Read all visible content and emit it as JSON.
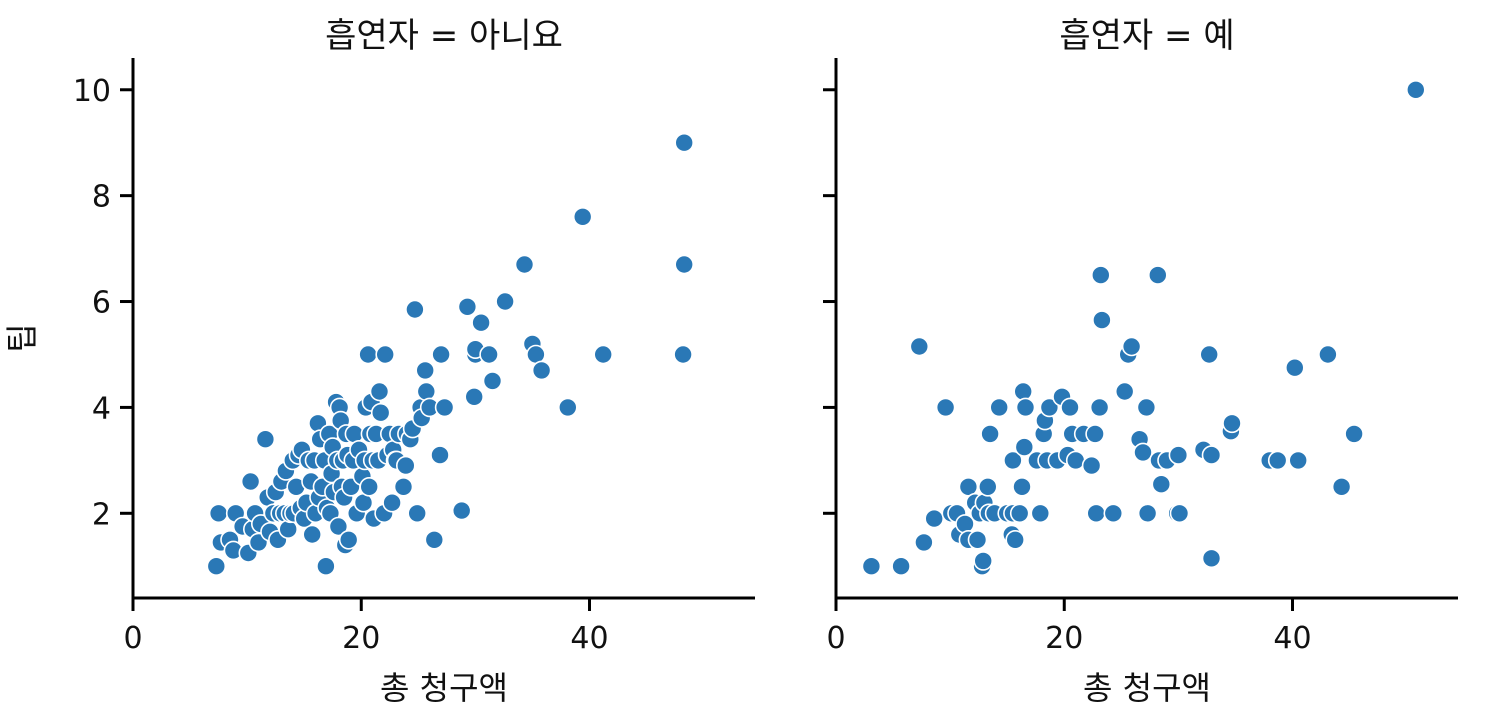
{
  "chart_data": {
    "type": "scatter",
    "facet_label": "흡연자",
    "xlabel": "총 청구액",
    "ylabel": "팁",
    "xlim": [
      0,
      54.5
    ],
    "ylim": [
      0.4,
      10.6
    ],
    "x_ticks": [
      0,
      20,
      40
    ],
    "y_ticks": [
      2,
      4,
      6,
      8,
      10
    ],
    "color": "#2a78b6",
    "grid": false,
    "panels": [
      {
        "title": "흡연자 = 아니요",
        "points": [
          [
            7.3,
            1.0
          ],
          [
            7.5,
            2.0
          ],
          [
            7.7,
            1.45
          ],
          [
            8.5,
            1.5
          ],
          [
            8.8,
            1.3
          ],
          [
            9.0,
            2.0
          ],
          [
            9.6,
            1.75
          ],
          [
            10.1,
            1.25
          ],
          [
            10.3,
            2.6
          ],
          [
            10.5,
            1.7
          ],
          [
            10.7,
            2.0
          ],
          [
            11.0,
            1.45
          ],
          [
            11.2,
            1.8
          ],
          [
            11.6,
            3.4
          ],
          [
            11.8,
            2.3
          ],
          [
            12.0,
            1.65
          ],
          [
            12.3,
            2.0
          ],
          [
            12.5,
            2.4
          ],
          [
            12.7,
            1.5
          ],
          [
            12.9,
            2.0
          ],
          [
            13.0,
            2.6
          ],
          [
            13.3,
            2.0
          ],
          [
            13.4,
            2.8
          ],
          [
            13.6,
            1.7
          ],
          [
            13.8,
            2.0
          ],
          [
            14.0,
            3.0
          ],
          [
            14.1,
            2.0
          ],
          [
            14.3,
            2.5
          ],
          [
            14.5,
            3.1
          ],
          [
            14.7,
            2.1
          ],
          [
            14.8,
            3.2
          ],
          [
            15.0,
            1.9
          ],
          [
            15.2,
            2.2
          ],
          [
            15.4,
            3.0
          ],
          [
            15.6,
            2.6
          ],
          [
            15.7,
            1.6
          ],
          [
            15.9,
            3.0
          ],
          [
            16.0,
            2.0
          ],
          [
            16.2,
            3.7
          ],
          [
            16.3,
            2.3
          ],
          [
            16.4,
            3.4
          ],
          [
            16.6,
            2.5
          ],
          [
            16.8,
            3.0
          ],
          [
            16.9,
            1.0
          ],
          [
            17.0,
            2.1
          ],
          [
            17.2,
            3.5
          ],
          [
            17.3,
            2.0
          ],
          [
            17.4,
            2.75
          ],
          [
            17.5,
            3.25
          ],
          [
            17.6,
            2.4
          ],
          [
            17.8,
            4.1
          ],
          [
            17.9,
            3.0
          ],
          [
            18.0,
            1.75
          ],
          [
            18.1,
            4.0
          ],
          [
            18.2,
            3.75
          ],
          [
            18.3,
            2.5
          ],
          [
            18.4,
            3.0
          ],
          [
            18.5,
            2.3
          ],
          [
            18.6,
            1.4
          ],
          [
            18.7,
            3.5
          ],
          [
            18.8,
            3.1
          ],
          [
            18.9,
            1.5
          ],
          [
            19.1,
            2.5
          ],
          [
            19.3,
            3.0
          ],
          [
            19.4,
            3.5
          ],
          [
            19.6,
            2.0
          ],
          [
            19.8,
            3.2
          ],
          [
            20.1,
            2.7
          ],
          [
            20.2,
            2.2
          ],
          [
            20.3,
            3.0
          ],
          [
            20.4,
            4.0
          ],
          [
            20.6,
            5.0
          ],
          [
            20.7,
            2.5
          ],
          [
            20.8,
            3.5
          ],
          [
            20.9,
            4.1
          ],
          [
            21.0,
            3.0
          ],
          [
            21.1,
            1.9
          ],
          [
            21.3,
            3.5
          ],
          [
            21.5,
            3.0
          ],
          [
            21.6,
            4.3
          ],
          [
            21.7,
            3.9
          ],
          [
            22.0,
            2.0
          ],
          [
            22.1,
            5.0
          ],
          [
            22.3,
            3.1
          ],
          [
            22.5,
            3.5
          ],
          [
            22.7,
            2.2
          ],
          [
            22.8,
            3.2
          ],
          [
            23.0,
            3.0
          ],
          [
            23.1,
            3.0
          ],
          [
            23.3,
            3.5
          ],
          [
            23.7,
            2.5
          ],
          [
            23.9,
            2.9
          ],
          [
            24.0,
            3.5
          ],
          [
            24.3,
            3.4
          ],
          [
            24.5,
            3.6
          ],
          [
            24.7,
            5.85
          ],
          [
            24.9,
            2.0
          ],
          [
            25.2,
            4.0
          ],
          [
            25.3,
            3.8
          ],
          [
            25.6,
            4.7
          ],
          [
            25.7,
            4.3
          ],
          [
            26.0,
            4.0
          ],
          [
            26.4,
            1.5
          ],
          [
            26.9,
            3.1
          ],
          [
            27.0,
            5.0
          ],
          [
            27.3,
            4.0
          ],
          [
            28.8,
            2.05
          ],
          [
            29.3,
            5.9
          ],
          [
            29.9,
            4.2
          ],
          [
            30.0,
            5.0
          ],
          [
            30.0,
            5.1
          ],
          [
            30.5,
            5.6
          ],
          [
            31.2,
            5.0
          ],
          [
            31.5,
            4.5
          ],
          [
            32.6,
            6.0
          ],
          [
            34.3,
            6.7
          ],
          [
            35.0,
            5.2
          ],
          [
            35.3,
            5.0
          ],
          [
            35.8,
            4.7
          ],
          [
            38.1,
            4.0
          ],
          [
            39.4,
            7.6
          ],
          [
            41.2,
            5.0
          ],
          [
            48.2,
            5.0
          ],
          [
            48.3,
            6.7
          ],
          [
            48.3,
            9.0
          ]
        ]
      },
      {
        "title": "흡연자 = 예",
        "points": [
          [
            3.1,
            1.0
          ],
          [
            5.7,
            1.0
          ],
          [
            7.3,
            5.15
          ],
          [
            7.7,
            1.45
          ],
          [
            8.6,
            1.9
          ],
          [
            9.6,
            4.0
          ],
          [
            10.1,
            2.0
          ],
          [
            10.6,
            2.0
          ],
          [
            10.8,
            1.6
          ],
          [
            11.3,
            1.8
          ],
          [
            11.6,
            2.5
          ],
          [
            11.6,
            1.5
          ],
          [
            12.2,
            2.2
          ],
          [
            12.4,
            1.5
          ],
          [
            12.6,
            2.0
          ],
          [
            12.8,
            1.0
          ],
          [
            12.9,
            1.1
          ],
          [
            13.0,
            2.2
          ],
          [
            13.3,
            2.5
          ],
          [
            13.4,
            2.0
          ],
          [
            13.5,
            3.5
          ],
          [
            13.9,
            2.0
          ],
          [
            14.3,
            4.0
          ],
          [
            15.0,
            2.0
          ],
          [
            15.4,
            1.6
          ],
          [
            15.5,
            2.0
          ],
          [
            15.5,
            3.0
          ],
          [
            15.7,
            1.5
          ],
          [
            16.1,
            2.0
          ],
          [
            16.3,
            2.5
          ],
          [
            16.4,
            4.3
          ],
          [
            16.5,
            3.25
          ],
          [
            16.6,
            4.0
          ],
          [
            17.6,
            3.0
          ],
          [
            17.9,
            2.0
          ],
          [
            18.2,
            3.5
          ],
          [
            18.3,
            3.75
          ],
          [
            18.5,
            3.0
          ],
          [
            18.7,
            4.0
          ],
          [
            19.4,
            3.0
          ],
          [
            19.8,
            4.2
          ],
          [
            20.3,
            3.1
          ],
          [
            20.5,
            4.0
          ],
          [
            20.7,
            3.5
          ],
          [
            21.0,
            3.0
          ],
          [
            21.7,
            3.5
          ],
          [
            22.4,
            2.9
          ],
          [
            22.7,
            3.5
          ],
          [
            22.8,
            2.0
          ],
          [
            23.1,
            4.0
          ],
          [
            23.2,
            6.5
          ],
          [
            23.3,
            5.65
          ],
          [
            24.3,
            2.0
          ],
          [
            25.3,
            4.3
          ],
          [
            25.6,
            5.0
          ],
          [
            25.9,
            5.15
          ],
          [
            26.6,
            3.4
          ],
          [
            26.9,
            3.15
          ],
          [
            27.2,
            4.0
          ],
          [
            27.3,
            2.0
          ],
          [
            28.2,
            6.5
          ],
          [
            28.3,
            3.0
          ],
          [
            28.5,
            2.55
          ],
          [
            29.0,
            3.0
          ],
          [
            29.9,
            2.0
          ],
          [
            30.0,
            3.1
          ],
          [
            30.1,
            2.0
          ],
          [
            32.2,
            3.2
          ],
          [
            32.7,
            5.0
          ],
          [
            32.9,
            3.1
          ],
          [
            32.9,
            1.15
          ],
          [
            34.6,
            3.55
          ],
          [
            34.7,
            3.7
          ],
          [
            38.0,
            3.0
          ],
          [
            38.7,
            3.0
          ],
          [
            40.2,
            4.75
          ],
          [
            40.5,
            3.0
          ],
          [
            43.1,
            5.0
          ],
          [
            44.3,
            2.5
          ],
          [
            45.4,
            3.5
          ],
          [
            50.8,
            10.0
          ]
        ]
      }
    ]
  }
}
